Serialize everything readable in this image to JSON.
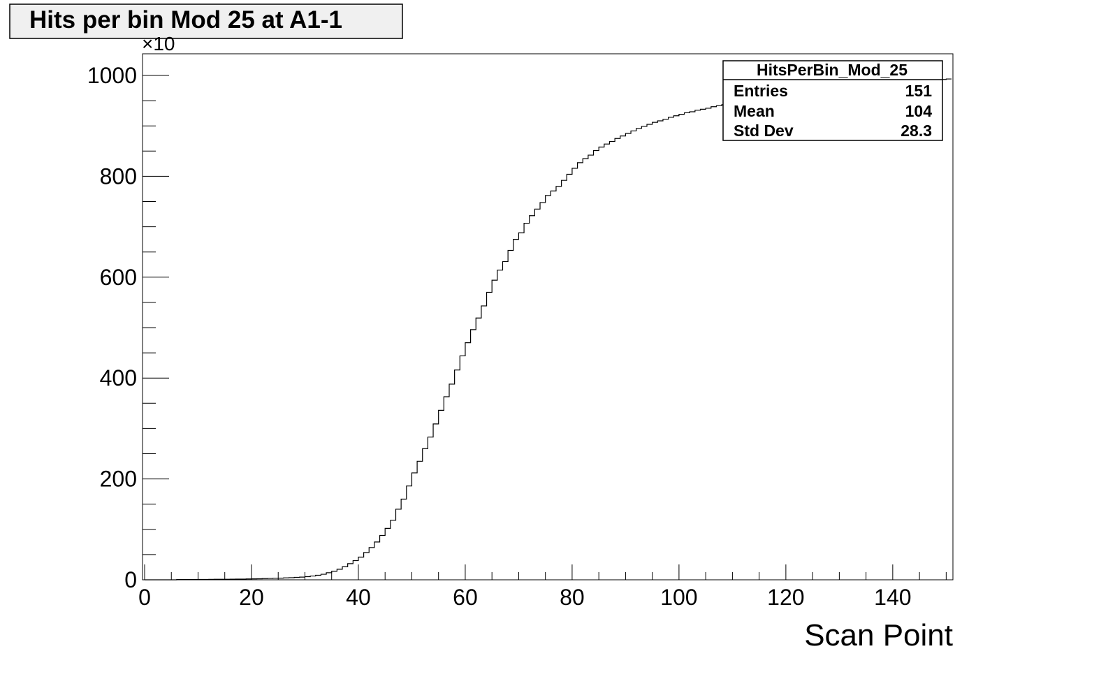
{
  "chart_data": {
    "type": "bar",
    "title": "Hits per bin Mod 25 at A1-1",
    "xlabel": "Scan Point",
    "ylabel": "",
    "y_multiplier_label": "×10",
    "xlim": [
      0,
      151
    ],
    "ylim": [
      0,
      1000
    ],
    "x_ticks": [
      0,
      20,
      40,
      60,
      80,
      100,
      120,
      140
    ],
    "y_ticks": [
      0,
      200,
      400,
      600,
      800,
      1000
    ],
    "grid": false,
    "stats_box": {
      "name": "HitsPerBin_Mod_25",
      "position": "top-right",
      "rows": [
        {
          "label": "Entries",
          "value": "151"
        },
        {
          "label": "Mean",
          "value": "104"
        },
        {
          "label": "Std Dev",
          "value": "28.3"
        }
      ]
    },
    "bin_width": 1,
    "x_start": 0,
    "values": [
      0,
      0,
      0,
      0,
      0,
      0,
      0.5,
      0.5,
      0.6,
      0.6,
      0.7,
      0.8,
      0.9,
      1.0,
      1.0,
      1.1,
      1.2,
      1.4,
      1.5,
      1.7,
      1.9,
      2.1,
      2.4,
      2.7,
      3.0,
      3.3,
      3.8,
      4.2,
      4.8,
      5.4,
      6.2,
      7.5,
      9.0,
      11,
      14,
      17,
      21,
      26,
      32,
      38,
      45,
      54,
      64,
      75,
      88,
      102,
      118,
      140,
      160,
      186,
      212,
      235,
      260,
      283,
      309,
      336,
      363,
      388,
      416,
      444,
      470,
      496,
      519,
      543,
      570,
      594,
      614,
      631,
      653,
      675,
      688,
      707,
      722,
      735,
      748,
      762,
      771,
      780,
      792,
      804,
      816,
      827,
      835,
      842,
      851,
      858,
      864,
      869,
      875,
      880,
      885,
      890,
      895,
      899,
      903,
      907,
      910,
      913,
      917,
      920,
      923,
      926,
      928,
      931,
      933,
      935,
      938,
      940,
      942,
      944,
      946,
      948,
      950,
      951,
      953,
      955,
      956,
      958,
      959,
      960,
      962,
      963,
      964,
      966,
      967,
      968,
      969,
      970,
      971,
      972,
      973,
      974,
      975,
      976,
      977,
      978,
      979,
      980,
      981,
      982,
      983,
      984,
      985,
      986,
      987,
      988,
      989,
      990,
      991,
      992,
      993
    ]
  }
}
